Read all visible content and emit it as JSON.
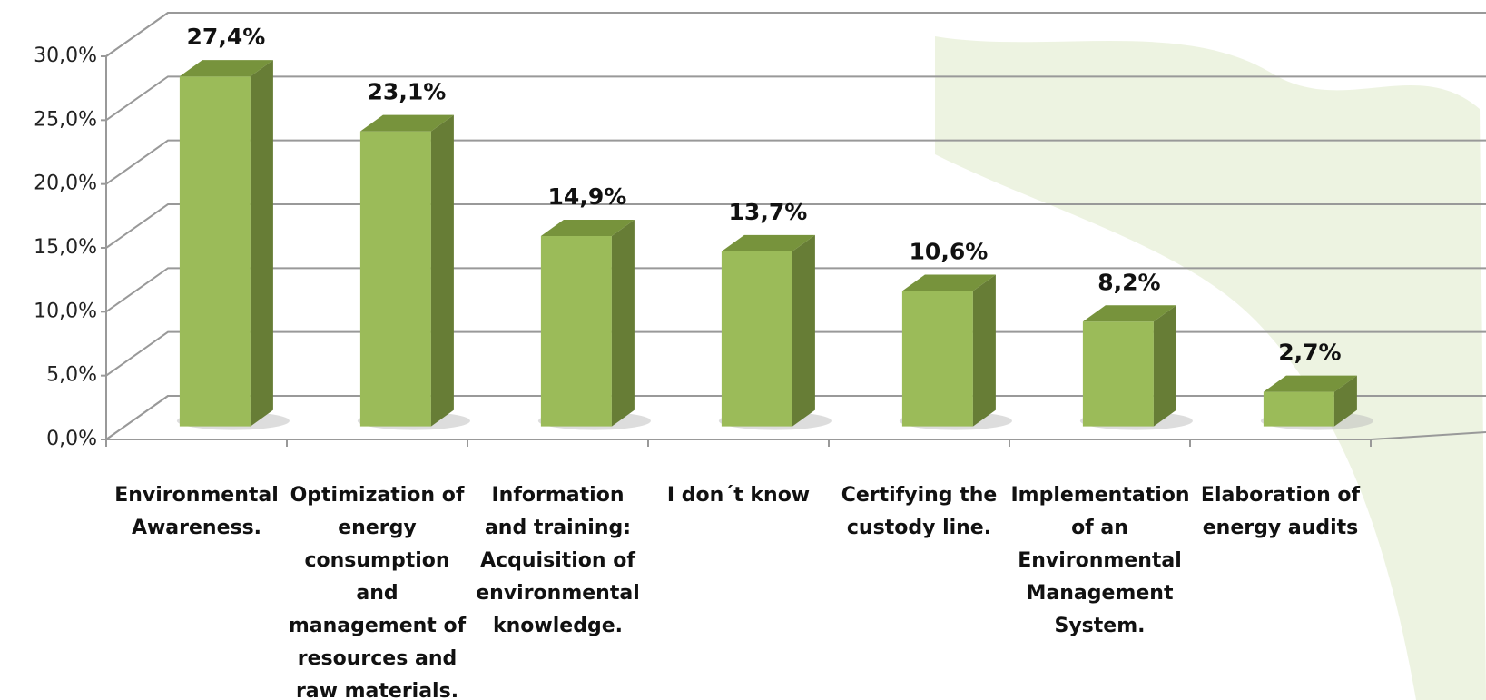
{
  "chart_data": {
    "type": "bar3d",
    "categories": [
      "Environmental Awareness.",
      "Optimization of energy consumption and management of resources and raw materials.",
      "Information and training: Acquisition of environmental knowledge.",
      "I don´t know",
      "Certifying the custody line.",
      "Implementation of an Environmental Management System.",
      "Elaboration of energy audits"
    ],
    "values": [
      27.4,
      23.1,
      14.9,
      13.7,
      10.6,
      8.2,
      2.7
    ],
    "value_labels": [
      "27,4%",
      "23,1%",
      "14,9%",
      "13,7%",
      "10,6%",
      "8,2%",
      "2,7%"
    ],
    "color": "#9bbb59",
    "ylim": [
      0,
      30
    ],
    "yticks": [
      {
        "value": 0,
        "label": "0,0%"
      },
      {
        "value": 5,
        "label": "5,0%"
      },
      {
        "value": 10,
        "label": "10,0%"
      },
      {
        "value": 15,
        "label": "15,0%"
      },
      {
        "value": 20,
        "label": "20,0%"
      },
      {
        "value": 25,
        "label": "25,0%"
      },
      {
        "value": 30,
        "label": "30,0%"
      }
    ],
    "grid": true
  }
}
